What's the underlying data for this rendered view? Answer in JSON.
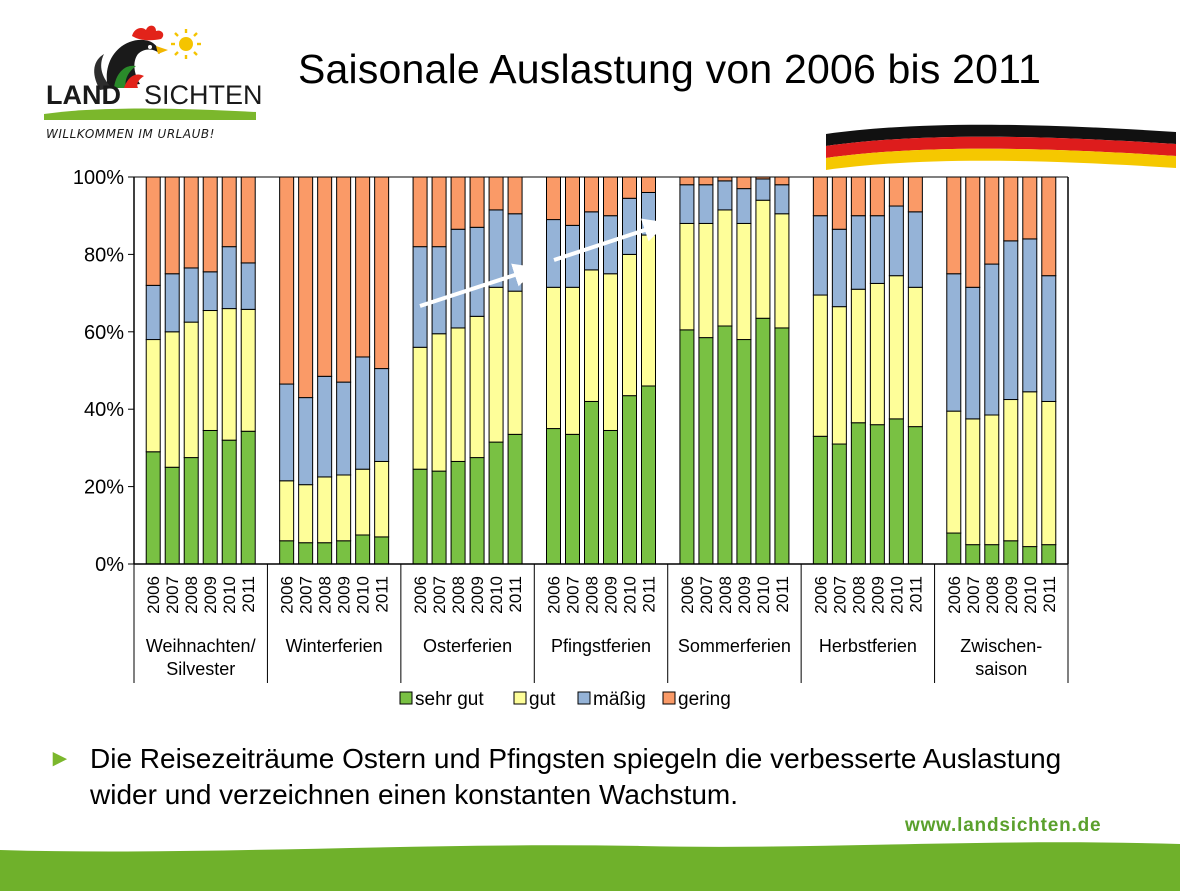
{
  "header": {
    "title": "Saisonale Auslastung von 2006 bis 2011",
    "logo": {
      "word_left": "LAND",
      "word_right": "SICHTEN",
      "tagline": "WILLKOMMEN IM URLAUB!"
    }
  },
  "colors": {
    "sehr_gut": "#79c143",
    "gut": "#fefe99",
    "maessig": "#95b3d7",
    "gering": "#fa9a67",
    "accent_green": "#7bb72c",
    "site_green": "#5aa02c"
  },
  "chart_data": {
    "type": "bar",
    "stacked": true,
    "ylim": [
      0,
      100
    ],
    "yticks": [
      "0%",
      "20%",
      "40%",
      "60%",
      "80%",
      "100%"
    ],
    "years": [
      "2006",
      "2007",
      "2008",
      "2009",
      "2010",
      "2011"
    ],
    "series_names": [
      "sehr gut",
      "gut",
      "mäßig",
      "gering"
    ],
    "groups": [
      {
        "label": [
          "Weihnachten/",
          "Silvester"
        ],
        "sehr_gut": [
          29,
          25,
          27.5,
          34.5,
          32,
          34.3
        ],
        "gut": [
          29,
          35,
          35,
          31,
          34,
          31.5
        ],
        "maessig": [
          14,
          15,
          14,
          10,
          16,
          12
        ],
        "gering": [
          28,
          25,
          23.5,
          24.5,
          18,
          22.2
        ]
      },
      {
        "label": [
          "Winterferien"
        ],
        "sehr_gut": [
          6,
          5.5,
          5.5,
          6,
          7.5,
          7
        ],
        "gut": [
          15.5,
          15,
          17,
          17,
          17,
          19.5
        ],
        "maessig": [
          25,
          22.5,
          26,
          24,
          29,
          24
        ],
        "gering": [
          53.5,
          57,
          51.5,
          53,
          46.5,
          49.5
        ]
      },
      {
        "label": [
          "Osterferien"
        ],
        "sehr_gut": [
          24.5,
          24,
          26.5,
          27.5,
          31.5,
          33.5
        ],
        "gut": [
          31.5,
          35.5,
          34.5,
          36.5,
          40,
          37
        ],
        "maessig": [
          26,
          22.5,
          25.5,
          23,
          20,
          20
        ],
        "gering": [
          18,
          18,
          13.5,
          13,
          8.5,
          9.5
        ]
      },
      {
        "label": [
          "Pfingstferien"
        ],
        "sehr_gut": [
          35,
          33.5,
          42,
          34.5,
          43.5,
          46
        ],
        "gut": [
          36.5,
          38,
          34,
          40.5,
          36.5,
          39
        ],
        "maessig": [
          17.5,
          16,
          15,
          15,
          14.5,
          11
        ],
        "gering": [
          11,
          12.5,
          9,
          10,
          5.5,
          4
        ]
      },
      {
        "label": [
          "Sommerferien"
        ],
        "sehr_gut": [
          60.5,
          58.5,
          61.5,
          58,
          63.5,
          61
        ],
        "gut": [
          27.5,
          29.5,
          30,
          30,
          30.5,
          29.5
        ],
        "maessig": [
          10,
          10,
          7.5,
          9,
          5.5,
          7.5
        ],
        "gering": [
          2,
          2,
          1,
          3,
          0.5,
          2
        ]
      },
      {
        "label": [
          "Herbstferien"
        ],
        "sehr_gut": [
          33,
          31,
          36.5,
          36,
          37.5,
          35.5
        ],
        "gut": [
          36.5,
          35.5,
          34.5,
          36.5,
          37,
          36
        ],
        "maessig": [
          20.5,
          20,
          19,
          17.5,
          18,
          19.5
        ],
        "gering": [
          10,
          13.5,
          10,
          10,
          7.5,
          9
        ]
      },
      {
        "label": [
          "Zwischen-",
          "saison"
        ],
        "sehr_gut": [
          8,
          5,
          5,
          6,
          4.5,
          5
        ],
        "gut": [
          31.5,
          32.5,
          33.5,
          36.5,
          40,
          37
        ],
        "maessig": [
          35.5,
          34,
          39,
          41,
          39.5,
          32.5
        ],
        "gering": [
          25,
          28.5,
          22.5,
          16.5,
          16,
          25.5
        ]
      }
    ]
  },
  "footer": {
    "bullet_marker": "►",
    "bullet_text": "Die Reisezeiträume Ostern und Pfingsten spiegeln die verbesserte Auslastung wider und verzeichnen einen konstanten Wachstum.",
    "website": "www.landsichten.de"
  }
}
